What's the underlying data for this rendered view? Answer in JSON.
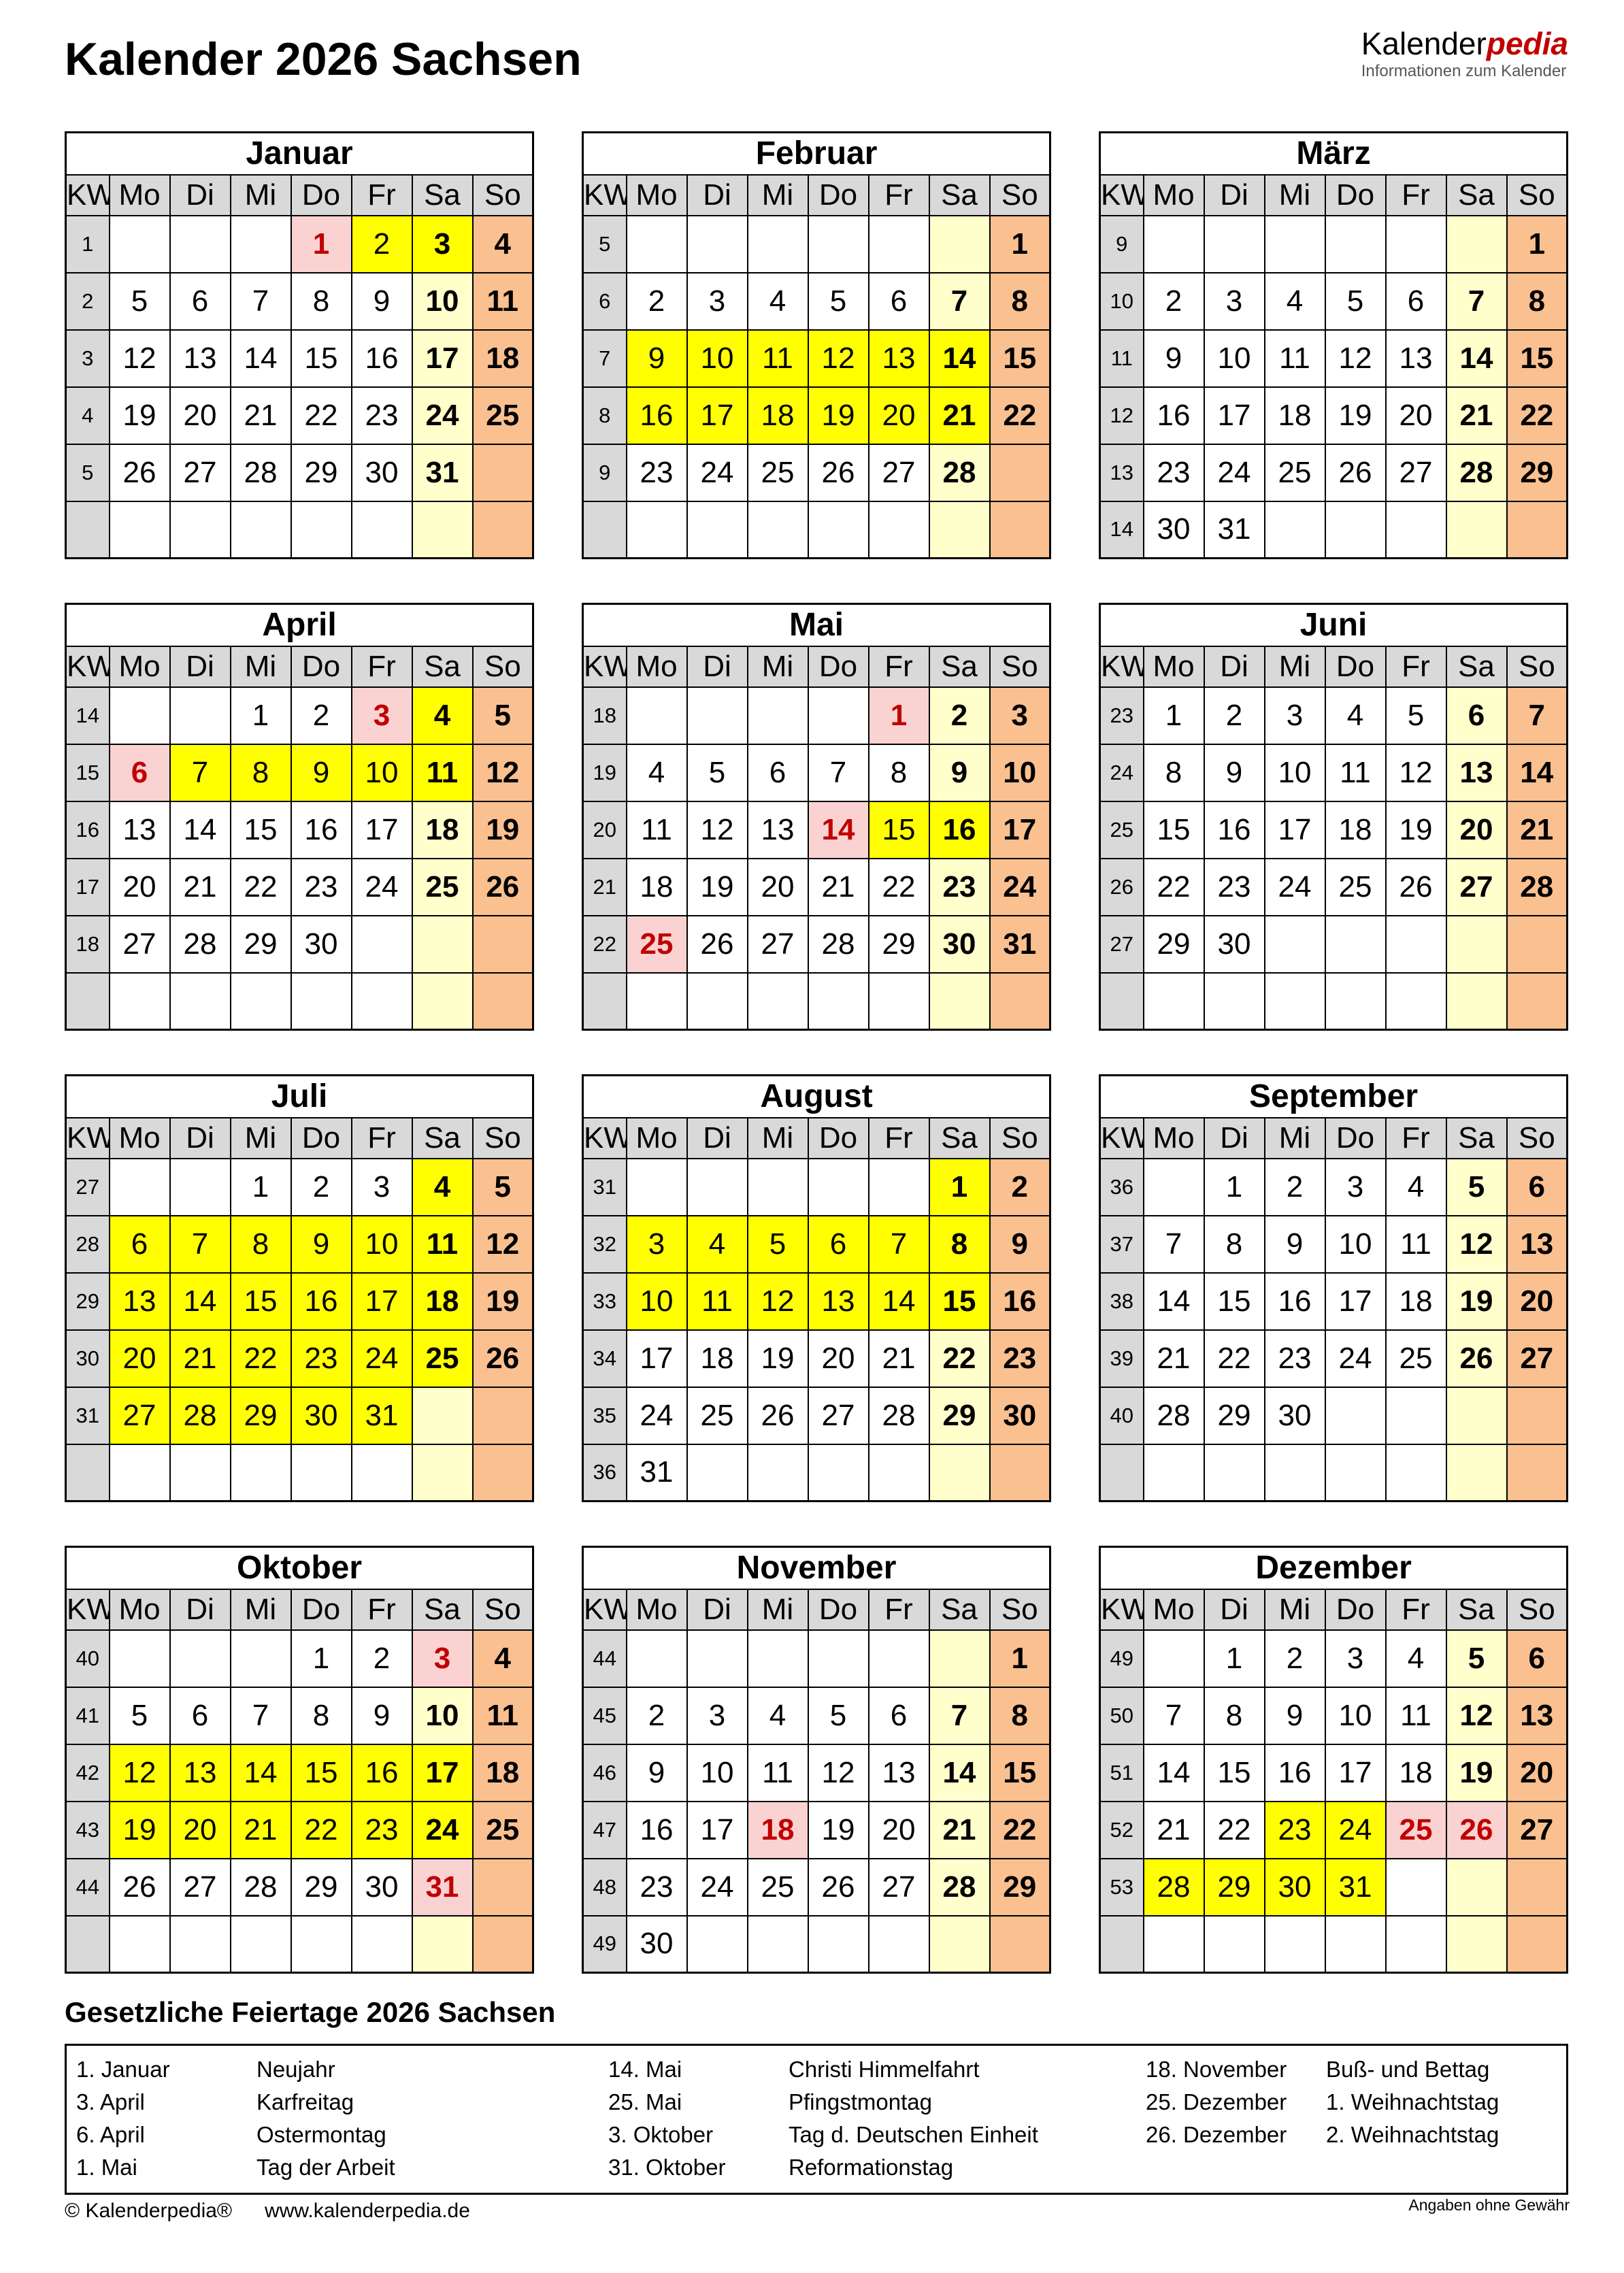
{
  "page": {
    "title": "Kalender 2026 Sachsen"
  },
  "logo": {
    "brand_black": "Kalender",
    "brand_red": "pedia",
    "tagline": "Informationen zum Kalender"
  },
  "colors": {
    "school_holiday_yellow": "#ffff00",
    "public_holiday_pink": "#fbd2d2",
    "holiday_red_text": "#c00000",
    "saturday_lightyellow": "#ffffcc",
    "sunday_orange": "#fac090",
    "header_gray": "#d9d9d9"
  },
  "weekday_headers": [
    "KW",
    "Mo",
    "Di",
    "Mi",
    "Do",
    "Fr",
    "Sa",
    "So"
  ],
  "day_flag_legend": {
    "y": "school-holiday",
    "p": "public-holiday"
  },
  "months": [
    {
      "id": "januar",
      "name": "Januar",
      "weeks": [
        {
          "kw": "1",
          "days": [
            "",
            "",
            "",
            "1p",
            "2y",
            "3y",
            "4"
          ]
        },
        {
          "kw": "2",
          "days": [
            "5",
            "6",
            "7",
            "8",
            "9",
            "10",
            "11"
          ]
        },
        {
          "kw": "3",
          "days": [
            "12",
            "13",
            "14",
            "15",
            "16",
            "17",
            "18"
          ]
        },
        {
          "kw": "4",
          "days": [
            "19",
            "20",
            "21",
            "22",
            "23",
            "24",
            "25"
          ]
        },
        {
          "kw": "5",
          "days": [
            "26",
            "27",
            "28",
            "29",
            "30",
            "31",
            ""
          ]
        },
        {
          "kw": "",
          "days": [
            "",
            "",
            "",
            "",
            "",
            "",
            ""
          ]
        }
      ]
    },
    {
      "id": "februar",
      "name": "Februar",
      "weeks": [
        {
          "kw": "5",
          "days": [
            "",
            "",
            "",
            "",
            "",
            "",
            "1"
          ]
        },
        {
          "kw": "6",
          "days": [
            "2",
            "3",
            "4",
            "5",
            "6",
            "7",
            "8"
          ]
        },
        {
          "kw": "7",
          "days": [
            "9y",
            "10y",
            "11y",
            "12y",
            "13y",
            "14y",
            "15"
          ]
        },
        {
          "kw": "8",
          "days": [
            "16y",
            "17y",
            "18y",
            "19y",
            "20y",
            "21y",
            "22"
          ]
        },
        {
          "kw": "9",
          "days": [
            "23",
            "24",
            "25",
            "26",
            "27",
            "28",
            ""
          ]
        },
        {
          "kw": "",
          "days": [
            "",
            "",
            "",
            "",
            "",
            "",
            ""
          ]
        }
      ]
    },
    {
      "id": "maerz",
      "name": "März",
      "weeks": [
        {
          "kw": "9",
          "days": [
            "",
            "",
            "",
            "",
            "",
            "",
            "1"
          ]
        },
        {
          "kw": "10",
          "days": [
            "2",
            "3",
            "4",
            "5",
            "6",
            "7",
            "8"
          ]
        },
        {
          "kw": "11",
          "days": [
            "9",
            "10",
            "11",
            "12",
            "13",
            "14",
            "15"
          ]
        },
        {
          "kw": "12",
          "days": [
            "16",
            "17",
            "18",
            "19",
            "20",
            "21",
            "22"
          ]
        },
        {
          "kw": "13",
          "days": [
            "23",
            "24",
            "25",
            "26",
            "27",
            "28",
            "29"
          ]
        },
        {
          "kw": "14",
          "days": [
            "30",
            "31",
            "",
            "",
            "",
            "",
            ""
          ]
        }
      ]
    },
    {
      "id": "april",
      "name": "April",
      "weeks": [
        {
          "kw": "14",
          "days": [
            "",
            "",
            "1",
            "2",
            "3p",
            "4y",
            "5"
          ]
        },
        {
          "kw": "15",
          "days": [
            "6p",
            "7y",
            "8y",
            "9y",
            "10y",
            "11y",
            "12"
          ]
        },
        {
          "kw": "16",
          "days": [
            "13",
            "14",
            "15",
            "16",
            "17",
            "18",
            "19"
          ]
        },
        {
          "kw": "17",
          "days": [
            "20",
            "21",
            "22",
            "23",
            "24",
            "25",
            "26"
          ]
        },
        {
          "kw": "18",
          "days": [
            "27",
            "28",
            "29",
            "30",
            "",
            "",
            ""
          ]
        },
        {
          "kw": "",
          "days": [
            "",
            "",
            "",
            "",
            "",
            "",
            ""
          ]
        }
      ]
    },
    {
      "id": "mai",
      "name": "Mai",
      "weeks": [
        {
          "kw": "18",
          "days": [
            "",
            "",
            "",
            "",
            "1p",
            "2",
            "3"
          ]
        },
        {
          "kw": "19",
          "days": [
            "4",
            "5",
            "6",
            "7",
            "8",
            "9",
            "10"
          ]
        },
        {
          "kw": "20",
          "days": [
            "11",
            "12",
            "13",
            "14p",
            "15y",
            "16y",
            "17"
          ]
        },
        {
          "kw": "21",
          "days": [
            "18",
            "19",
            "20",
            "21",
            "22",
            "23",
            "24"
          ]
        },
        {
          "kw": "22",
          "days": [
            "25p",
            "26",
            "27",
            "28",
            "29",
            "30",
            "31"
          ]
        },
        {
          "kw": "",
          "days": [
            "",
            "",
            "",
            "",
            "",
            "",
            ""
          ]
        }
      ]
    },
    {
      "id": "juni",
      "name": "Juni",
      "weeks": [
        {
          "kw": "23",
          "days": [
            "1",
            "2",
            "3",
            "4",
            "5",
            "6",
            "7"
          ]
        },
        {
          "kw": "24",
          "days": [
            "8",
            "9",
            "10",
            "11",
            "12",
            "13",
            "14"
          ]
        },
        {
          "kw": "25",
          "days": [
            "15",
            "16",
            "17",
            "18",
            "19",
            "20",
            "21"
          ]
        },
        {
          "kw": "26",
          "days": [
            "22",
            "23",
            "24",
            "25",
            "26",
            "27",
            "28"
          ]
        },
        {
          "kw": "27",
          "days": [
            "29",
            "30",
            "",
            "",
            "",
            "",
            ""
          ]
        },
        {
          "kw": "",
          "days": [
            "",
            "",
            "",
            "",
            "",
            "",
            ""
          ]
        }
      ]
    },
    {
      "id": "juli",
      "name": "Juli",
      "weeks": [
        {
          "kw": "27",
          "days": [
            "",
            "",
            "1",
            "2",
            "3",
            "4y",
            "5"
          ]
        },
        {
          "kw": "28",
          "days": [
            "6y",
            "7y",
            "8y",
            "9y",
            "10y",
            "11y",
            "12"
          ]
        },
        {
          "kw": "29",
          "days": [
            "13y",
            "14y",
            "15y",
            "16y",
            "17y",
            "18y",
            "19"
          ]
        },
        {
          "kw": "30",
          "days": [
            "20y",
            "21y",
            "22y",
            "23y",
            "24y",
            "25y",
            "26"
          ]
        },
        {
          "kw": "31",
          "days": [
            "27y",
            "28y",
            "29y",
            "30y",
            "31y",
            "",
            ""
          ]
        },
        {
          "kw": "",
          "days": [
            "",
            "",
            "",
            "",
            "",
            "",
            ""
          ]
        }
      ]
    },
    {
      "id": "august",
      "name": "August",
      "weeks": [
        {
          "kw": "31",
          "days": [
            "",
            "",
            "",
            "",
            "",
            "1y",
            "2"
          ]
        },
        {
          "kw": "32",
          "days": [
            "3y",
            "4y",
            "5y",
            "6y",
            "7y",
            "8y",
            "9"
          ]
        },
        {
          "kw": "33",
          "days": [
            "10y",
            "11y",
            "12y",
            "13y",
            "14y",
            "15y",
            "16"
          ]
        },
        {
          "kw": "34",
          "days": [
            "17",
            "18",
            "19",
            "20",
            "21",
            "22",
            "23"
          ]
        },
        {
          "kw": "35",
          "days": [
            "24",
            "25",
            "26",
            "27",
            "28",
            "29",
            "30"
          ]
        },
        {
          "kw": "36",
          "days": [
            "31",
            "",
            "",
            "",
            "",
            "",
            ""
          ]
        }
      ]
    },
    {
      "id": "september",
      "name": "September",
      "weeks": [
        {
          "kw": "36",
          "days": [
            "",
            "1",
            "2",
            "3",
            "4",
            "5",
            "6"
          ]
        },
        {
          "kw": "37",
          "days": [
            "7",
            "8",
            "9",
            "10",
            "11",
            "12",
            "13"
          ]
        },
        {
          "kw": "38",
          "days": [
            "14",
            "15",
            "16",
            "17",
            "18",
            "19",
            "20"
          ]
        },
        {
          "kw": "39",
          "days": [
            "21",
            "22",
            "23",
            "24",
            "25",
            "26",
            "27"
          ]
        },
        {
          "kw": "40",
          "days": [
            "28",
            "29",
            "30",
            "",
            "",
            "",
            ""
          ]
        },
        {
          "kw": "",
          "days": [
            "",
            "",
            "",
            "",
            "",
            "",
            ""
          ]
        }
      ]
    },
    {
      "id": "oktober",
      "name": "Oktober",
      "weeks": [
        {
          "kw": "40",
          "days": [
            "",
            "",
            "",
            "1",
            "2",
            "3p",
            "4"
          ]
        },
        {
          "kw": "41",
          "days": [
            "5",
            "6",
            "7",
            "8",
            "9",
            "10",
            "11"
          ]
        },
        {
          "kw": "42",
          "days": [
            "12y",
            "13y",
            "14y",
            "15y",
            "16y",
            "17y",
            "18"
          ]
        },
        {
          "kw": "43",
          "days": [
            "19y",
            "20y",
            "21y",
            "22y",
            "23y",
            "24y",
            "25"
          ]
        },
        {
          "kw": "44",
          "days": [
            "26",
            "27",
            "28",
            "29",
            "30",
            "31p",
            ""
          ]
        },
        {
          "kw": "",
          "days": [
            "",
            "",
            "",
            "",
            "",
            "",
            ""
          ]
        }
      ]
    },
    {
      "id": "november",
      "name": "November",
      "weeks": [
        {
          "kw": "44",
          "days": [
            "",
            "",
            "",
            "",
            "",
            "",
            "1"
          ]
        },
        {
          "kw": "45",
          "days": [
            "2",
            "3",
            "4",
            "5",
            "6",
            "7",
            "8"
          ]
        },
        {
          "kw": "46",
          "days": [
            "9",
            "10",
            "11",
            "12",
            "13",
            "14",
            "15"
          ]
        },
        {
          "kw": "47",
          "days": [
            "16",
            "17",
            "18p",
            "19",
            "20",
            "21",
            "22"
          ]
        },
        {
          "kw": "48",
          "days": [
            "23",
            "24",
            "25",
            "26",
            "27",
            "28",
            "29"
          ]
        },
        {
          "kw": "49",
          "days": [
            "30",
            "",
            "",
            "",
            "",
            "",
            ""
          ]
        }
      ]
    },
    {
      "id": "dezember",
      "name": "Dezember",
      "weeks": [
        {
          "kw": "49",
          "days": [
            "",
            "1",
            "2",
            "3",
            "4",
            "5",
            "6"
          ]
        },
        {
          "kw": "50",
          "days": [
            "7",
            "8",
            "9",
            "10",
            "11",
            "12",
            "13"
          ]
        },
        {
          "kw": "51",
          "days": [
            "14",
            "15",
            "16",
            "17",
            "18",
            "19",
            "20"
          ]
        },
        {
          "kw": "52",
          "days": [
            "21",
            "22",
            "23y",
            "24y",
            "25p",
            "26p",
            "27"
          ]
        },
        {
          "kw": "53",
          "days": [
            "28y",
            "29y",
            "30y",
            "31y",
            "",
            "",
            ""
          ]
        },
        {
          "kw": "",
          "days": [
            "",
            "",
            "",
            "",
            "",
            "",
            ""
          ]
        }
      ]
    }
  ],
  "holidays": {
    "heading": "Gesetzliche Feiertage 2026 Sachsen",
    "columns": [
      [
        {
          "date": "1. Januar",
          "name": "Neujahr"
        },
        {
          "date": "3. April",
          "name": "Karfreitag"
        },
        {
          "date": "6. April",
          "name": "Ostermontag"
        },
        {
          "date": "1. Mai",
          "name": "Tag der Arbeit"
        }
      ],
      [
        {
          "date": "14. Mai",
          "name": "Christi Himmelfahrt"
        },
        {
          "date": "25. Mai",
          "name": "Pfingstmontag"
        },
        {
          "date": "3. Oktober",
          "name": "Tag d. Deutschen Einheit"
        },
        {
          "date": "31. Oktober",
          "name": "Reformationstag"
        }
      ],
      [
        {
          "date": "18. November",
          "name": "Buß- und Bettag"
        },
        {
          "date": "25. Dezember",
          "name": "1. Weihnachtstag"
        },
        {
          "date": "26. Dezember",
          "name": "2. Weihnachtstag"
        }
      ]
    ]
  },
  "footer": {
    "copyright": "© Kalenderpedia®",
    "url": "www.kalenderpedia.de",
    "disclaimer": "Angaben ohne Gewähr"
  }
}
